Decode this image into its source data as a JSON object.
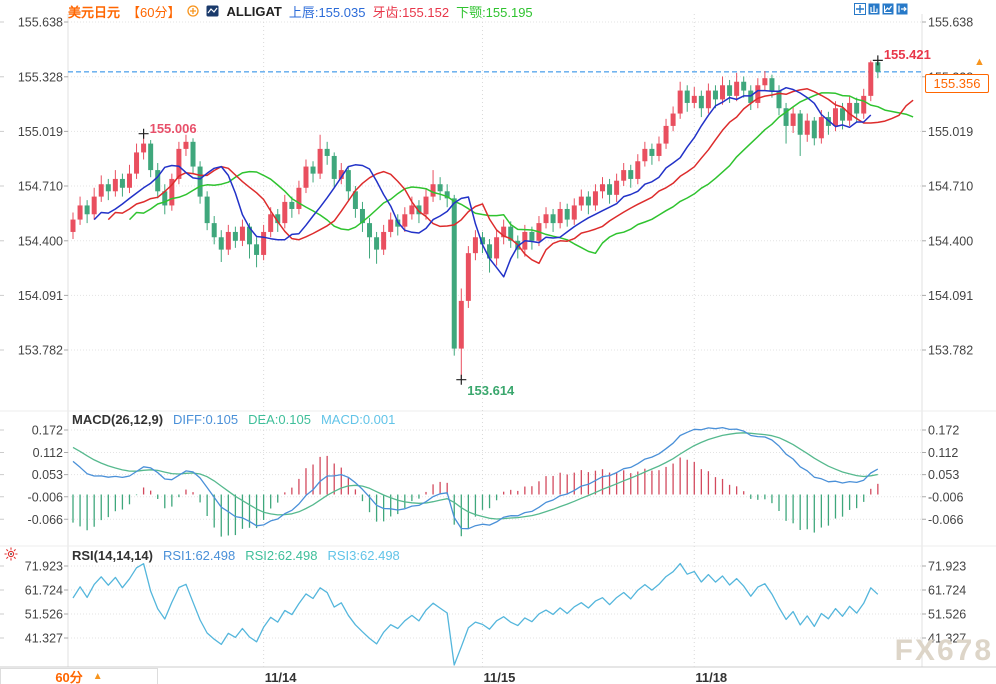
{
  "header": {
    "symbol": "美元日元",
    "period": "【60分】",
    "indicator": "ALLIGAT",
    "lips": "上唇:155.035",
    "teeth": "牙齿:155.152",
    "jaw": "下颚:155.195"
  },
  "toolbar": {
    "icons": [
      "pan-crosshair-icon",
      "chart-window-icon",
      "chart-trend-icon",
      "exit-window-icon"
    ]
  },
  "macd_header": {
    "title": "MACD(26,12,9)",
    "diff": "DIFF:0.105",
    "dea": "DEA:0.105",
    "macd": "MACD:0.001"
  },
  "rsi_header": {
    "title": "RSI(14,14,14)",
    "rsi1": "RSI1:62.498",
    "rsi2": "RSI2:62.498",
    "rsi3": "RSI3:62.498"
  },
  "price_badge": {
    "value": "155.356",
    "arrow": "▲"
  },
  "bottom_bar": {
    "tab_label": "60分",
    "tab_arrow": "▲"
  },
  "watermark": "FX678",
  "chart_data": {
    "type": "candlestick",
    "x_unit": "60min",
    "panels": {
      "main": {
        "ylabels": [
          "155.638",
          "155.328",
          "155.019",
          "154.710",
          "154.400",
          "154.091",
          "153.782"
        ]
      },
      "macd": {
        "ylabels": [
          "0.172",
          "0.112",
          "0.053",
          "-0.006",
          "-0.066"
        ]
      },
      "rsi": {
        "ylabels": [
          "71.923",
          "61.724",
          "51.526",
          "41.327"
        ]
      }
    },
    "day_ticks": [
      {
        "label": "11/14",
        "index": 27
      },
      {
        "label": "11/15",
        "index": 58
      },
      {
        "label": "11/18",
        "index": 88
      }
    ],
    "current_price": 155.356,
    "annotations": [
      {
        "kind": "high",
        "index": 10,
        "price": 155.006,
        "text": "155.006",
        "color": "#e8506a"
      },
      {
        "kind": "low",
        "index": 55,
        "price": 153.614,
        "text": "153.614",
        "color": "#3aa76d"
      },
      {
        "kind": "high",
        "index": 114,
        "price": 155.421,
        "text": "155.421",
        "color": "#e8374a"
      }
    ],
    "alligator": {
      "lips": {
        "window": 5,
        "shift": 3,
        "color": "#2232c8",
        "value": 155.035
      },
      "teeth": {
        "window": 8,
        "shift": 5,
        "color": "#dd2c2c",
        "value": 155.152
      },
      "jaw": {
        "window": 13,
        "shift": 8,
        "color": "#2fc32f",
        "value": 155.195
      }
    },
    "macd": {
      "slow": 26,
      "fast": 12,
      "signal": 9,
      "diff": 0.105,
      "dea": 0.105,
      "macd": 0.001,
      "seeds": {
        "ema12": 154.75,
        "ema26": 154.635,
        "dea": 0.135
      }
    },
    "rsi": {
      "period": 14,
      "value": 62.498,
      "seeds": {
        "gain": 0.028,
        "loss": 0.02
      }
    },
    "colors": {
      "up": "#e94f5f",
      "down": "#3fa77c",
      "diff_line": "#4a90d8",
      "dea_line": "#56b98e",
      "hist_up": "#d34a5e",
      "hist_down": "#3fa77c",
      "rsi_line": "#54b6dc",
      "price_line": "#1e88e5",
      "accent": "#ff6600",
      "grid": "#e3e3e3"
    },
    "candles": [
      [
        154.45,
        154.56,
        154.41,
        154.52
      ],
      [
        154.52,
        154.65,
        154.49,
        154.6
      ],
      [
        154.6,
        154.63,
        154.5,
        154.55
      ],
      [
        154.55,
        154.7,
        154.52,
        154.65
      ],
      [
        154.65,
        154.77,
        154.62,
        154.72
      ],
      [
        154.72,
        154.75,
        154.63,
        154.68
      ],
      [
        154.68,
        154.8,
        154.65,
        154.75
      ],
      [
        154.75,
        154.78,
        154.65,
        154.7
      ],
      [
        154.7,
        154.83,
        154.67,
        154.78
      ],
      [
        154.78,
        154.95,
        154.75,
        154.9
      ],
      [
        154.9,
        155.006,
        154.86,
        154.95
      ],
      [
        154.95,
        154.97,
        154.76,
        154.8
      ],
      [
        154.8,
        154.84,
        154.64,
        154.68
      ],
      [
        154.68,
        154.72,
        154.55,
        154.6
      ],
      [
        154.6,
        154.78,
        154.57,
        154.75
      ],
      [
        154.75,
        154.96,
        154.72,
        154.92
      ],
      [
        154.92,
        155.0,
        154.88,
        154.96
      ],
      [
        154.96,
        154.98,
        154.78,
        154.82
      ],
      [
        154.82,
        154.85,
        154.61,
        154.65
      ],
      [
        154.65,
        154.68,
        154.46,
        154.5
      ],
      [
        154.5,
        154.54,
        154.38,
        154.42
      ],
      [
        154.42,
        154.46,
        154.28,
        154.35
      ],
      [
        154.35,
        154.49,
        154.32,
        154.45
      ],
      [
        154.45,
        154.48,
        154.36,
        154.4
      ],
      [
        154.4,
        154.52,
        154.37,
        154.48
      ],
      [
        154.48,
        154.5,
        154.3,
        154.38
      ],
      [
        154.38,
        154.42,
        154.25,
        154.32
      ],
      [
        154.32,
        154.49,
        154.29,
        154.45
      ],
      [
        154.45,
        154.59,
        154.42,
        154.55
      ],
      [
        154.55,
        154.58,
        154.45,
        154.5
      ],
      [
        154.5,
        154.66,
        154.47,
        154.62
      ],
      [
        154.62,
        154.65,
        154.53,
        154.58
      ],
      [
        154.58,
        154.74,
        154.55,
        154.7
      ],
      [
        154.7,
        154.86,
        154.67,
        154.82
      ],
      [
        154.82,
        154.85,
        154.73,
        154.78
      ],
      [
        154.78,
        155.0,
        154.75,
        154.92
      ],
      [
        154.92,
        154.96,
        154.83,
        154.88
      ],
      [
        154.88,
        154.9,
        154.7,
        154.75
      ],
      [
        154.75,
        154.84,
        154.72,
        154.8
      ],
      [
        154.8,
        154.82,
        154.63,
        154.68
      ],
      [
        154.68,
        154.71,
        154.53,
        154.58
      ],
      [
        154.58,
        154.62,
        154.45,
        154.5
      ],
      [
        154.5,
        154.53,
        154.3,
        154.42
      ],
      [
        154.42,
        154.45,
        154.27,
        154.35
      ],
      [
        154.35,
        154.49,
        154.32,
        154.45
      ],
      [
        154.45,
        154.56,
        154.42,
        154.52
      ],
      [
        154.52,
        154.55,
        154.43,
        154.48
      ],
      [
        154.48,
        154.59,
        154.45,
        154.55
      ],
      [
        154.55,
        154.65,
        154.52,
        154.6
      ],
      [
        154.6,
        154.63,
        154.5,
        154.55
      ],
      [
        154.55,
        154.69,
        154.52,
        154.65
      ],
      [
        154.65,
        154.8,
        154.62,
        154.72
      ],
      [
        154.72,
        154.76,
        154.63,
        154.68
      ],
      [
        154.68,
        154.72,
        154.59,
        154.64
      ],
      [
        154.64,
        154.66,
        153.75,
        153.79
      ],
      [
        153.79,
        154.13,
        153.614,
        154.06
      ],
      [
        154.06,
        154.37,
        154.02,
        154.33
      ],
      [
        154.33,
        154.46,
        154.29,
        154.42
      ],
      [
        154.42,
        154.45,
        154.33,
        154.38
      ],
      [
        154.38,
        154.41,
        154.22,
        154.3
      ],
      [
        154.3,
        154.46,
        154.26,
        154.42
      ],
      [
        154.42,
        154.52,
        154.38,
        154.48
      ],
      [
        154.48,
        154.51,
        154.36,
        154.4
      ],
      [
        154.4,
        154.43,
        154.3,
        154.35
      ],
      [
        154.35,
        154.49,
        154.31,
        154.45
      ],
      [
        154.45,
        154.48,
        154.35,
        154.4
      ],
      [
        154.4,
        154.54,
        154.37,
        154.5
      ],
      [
        154.5,
        154.59,
        154.47,
        154.55
      ],
      [
        154.55,
        154.58,
        154.45,
        154.5
      ],
      [
        154.5,
        154.62,
        154.47,
        154.58
      ],
      [
        154.58,
        154.61,
        154.48,
        154.52
      ],
      [
        154.52,
        154.64,
        154.49,
        154.6
      ],
      [
        154.6,
        154.69,
        154.57,
        154.65
      ],
      [
        154.65,
        154.68,
        154.55,
        154.6
      ],
      [
        154.6,
        154.72,
        154.57,
        154.68
      ],
      [
        154.68,
        154.76,
        154.64,
        154.72
      ],
      [
        154.72,
        154.75,
        154.61,
        154.66
      ],
      [
        154.66,
        154.78,
        154.62,
        154.74
      ],
      [
        154.74,
        154.84,
        154.71,
        154.8
      ],
      [
        154.8,
        154.83,
        154.7,
        154.75
      ],
      [
        154.75,
        154.89,
        154.72,
        154.85
      ],
      [
        154.85,
        154.96,
        154.82,
        154.92
      ],
      [
        154.92,
        154.95,
        154.83,
        154.88
      ],
      [
        154.88,
        154.99,
        154.85,
        154.95
      ],
      [
        154.95,
        155.09,
        154.92,
        155.05
      ],
      [
        155.05,
        155.16,
        155.02,
        155.12
      ],
      [
        155.12,
        155.3,
        155.09,
        155.25
      ],
      [
        155.25,
        155.28,
        155.13,
        155.18
      ],
      [
        155.18,
        155.27,
        155.15,
        155.22
      ],
      [
        155.22,
        155.25,
        155.1,
        155.15
      ],
      [
        155.15,
        155.29,
        155.12,
        155.25
      ],
      [
        155.25,
        155.28,
        155.15,
        155.2
      ],
      [
        155.2,
        155.33,
        155.17,
        155.28
      ],
      [
        155.28,
        155.31,
        155.18,
        155.22
      ],
      [
        155.22,
        155.35,
        155.19,
        155.3
      ],
      [
        155.3,
        155.33,
        155.21,
        155.25
      ],
      [
        155.25,
        155.28,
        155.14,
        155.18
      ],
      [
        155.18,
        155.32,
        155.15,
        155.28
      ],
      [
        155.28,
        155.36,
        155.25,
        155.32
      ],
      [
        155.32,
        155.34,
        155.21,
        155.25
      ],
      [
        155.25,
        155.28,
        155.11,
        155.15
      ],
      [
        155.15,
        155.18,
        154.95,
        155.05
      ],
      [
        155.05,
        155.16,
        155.01,
        155.12
      ],
      [
        155.12,
        155.14,
        154.88,
        155.0
      ],
      [
        155.0,
        155.12,
        154.96,
        155.08
      ],
      [
        155.08,
        155.1,
        154.94,
        154.98
      ],
      [
        154.98,
        155.14,
        154.95,
        155.1
      ],
      [
        155.1,
        155.13,
        155.0,
        155.05
      ],
      [
        155.05,
        155.19,
        155.02,
        155.15
      ],
      [
        155.15,
        155.18,
        155.03,
        155.08
      ],
      [
        155.08,
        155.22,
        155.05,
        155.18
      ],
      [
        155.18,
        155.21,
        155.07,
        155.12
      ],
      [
        155.12,
        155.26,
        155.09,
        155.22
      ],
      [
        155.22,
        155.42,
        155.19,
        155.41
      ],
      [
        155.41,
        155.421,
        155.32,
        155.356
      ]
    ]
  }
}
